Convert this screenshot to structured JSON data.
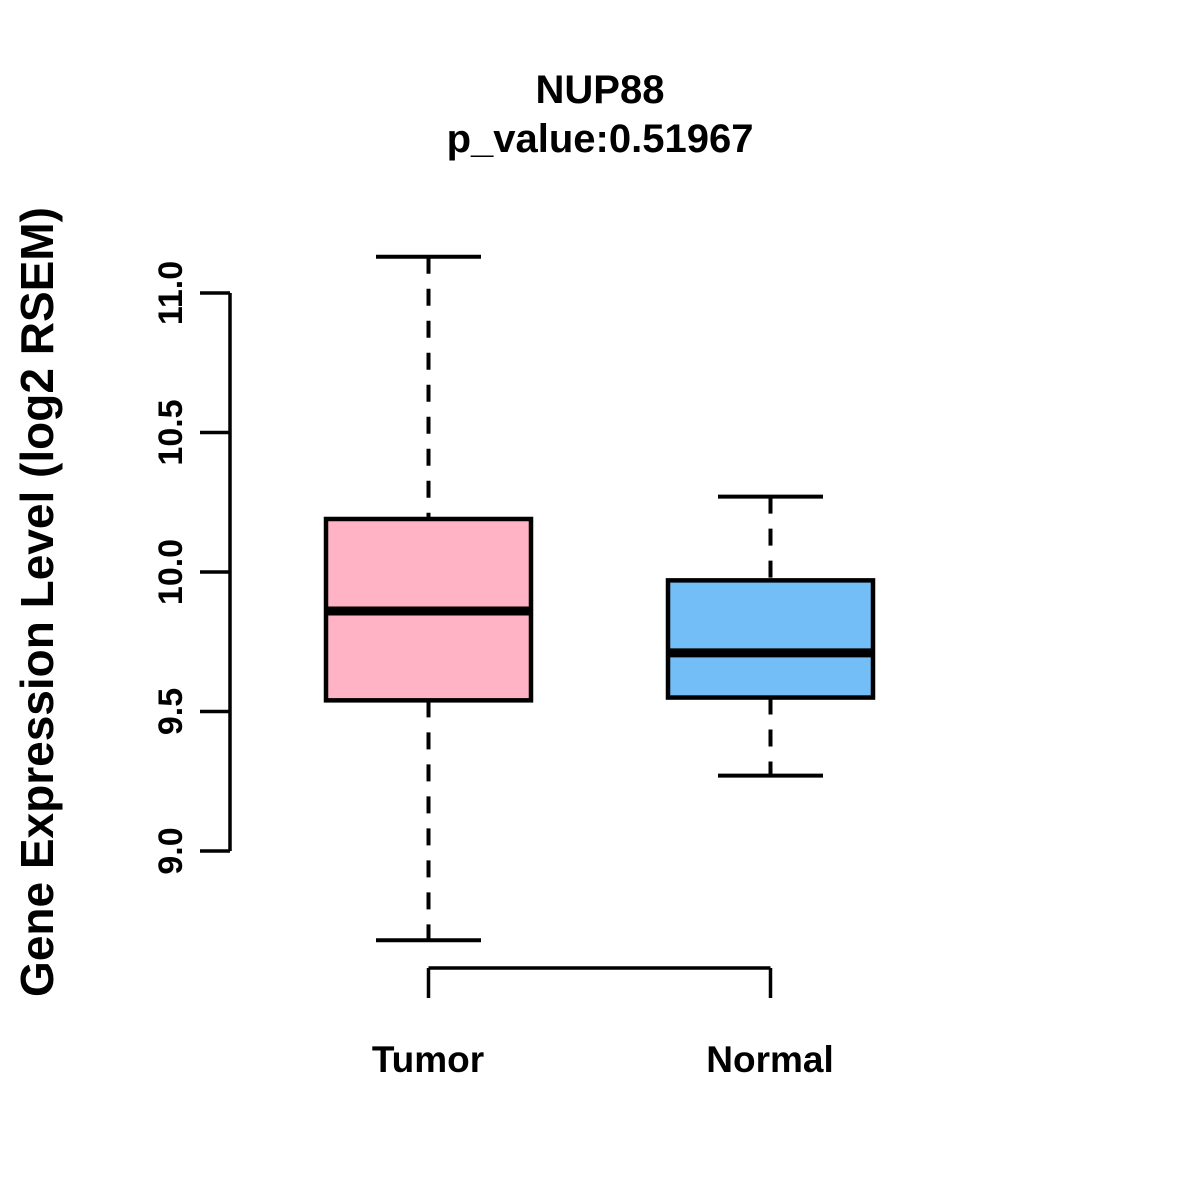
{
  "chart_data": {
    "type": "boxplot",
    "title": "NUP88",
    "subtitle": "p_value:0.51967",
    "ylabel": "Gene Expression Level (log2 RSEM)",
    "xlabel": "",
    "categories": [
      "Tumor",
      "Normal"
    ],
    "ylim": [
      9.0,
      11.0
    ],
    "y_ticks": [
      9.0,
      9.5,
      10.0,
      10.5,
      11.0
    ],
    "y_tick_labels": [
      "9.0",
      "9.5",
      "10.0",
      "10.5",
      "11.0"
    ],
    "grid": false,
    "legend": "none",
    "series": [
      {
        "name": "Tumor",
        "box_color": "#FFB3C5",
        "whisker_low": 8.68,
        "q1": 9.54,
        "median": 9.86,
        "q3": 10.19,
        "whisker_high": 11.13
      },
      {
        "name": "Normal",
        "box_color": "#73BEF7",
        "whisker_low": 9.27,
        "q1": 9.55,
        "median": 9.71,
        "q3": 9.97,
        "whisker_high": 10.27
      }
    ],
    "colors": {
      "tumor_fill": "#FFB3C5",
      "normal_fill": "#73BEF7",
      "stroke": "#000000",
      "background": "#FFFFFF"
    }
  }
}
